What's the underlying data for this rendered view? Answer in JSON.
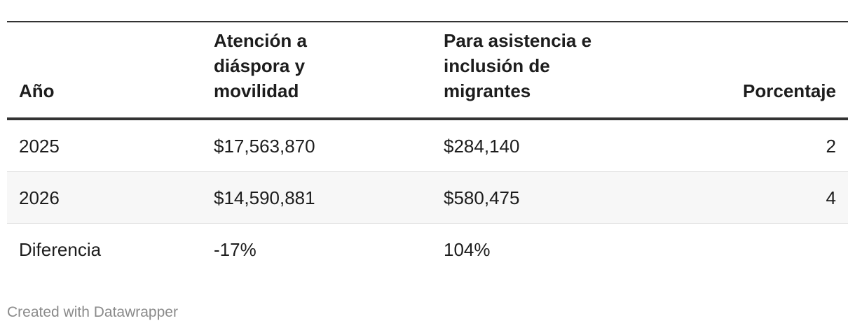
{
  "table": {
    "headers": {
      "year": "Año",
      "col_a": "Atención a diáspora y movilidad",
      "col_b": "Para asistencia e inclusión de migrantes",
      "pct": "Porcentaje"
    },
    "rows": [
      {
        "year": "2025",
        "col_a": "$17,563,870",
        "col_b": "$284,140",
        "pct": "2"
      },
      {
        "year": "2026",
        "col_a": "$14,590,881",
        "col_b": "$580,475",
        "pct": "4"
      },
      {
        "year": "Diferencia",
        "col_a": "-17%",
        "col_b": "104%",
        "pct": ""
      }
    ]
  },
  "footer": {
    "credit": "Created with Datawrapper"
  }
}
